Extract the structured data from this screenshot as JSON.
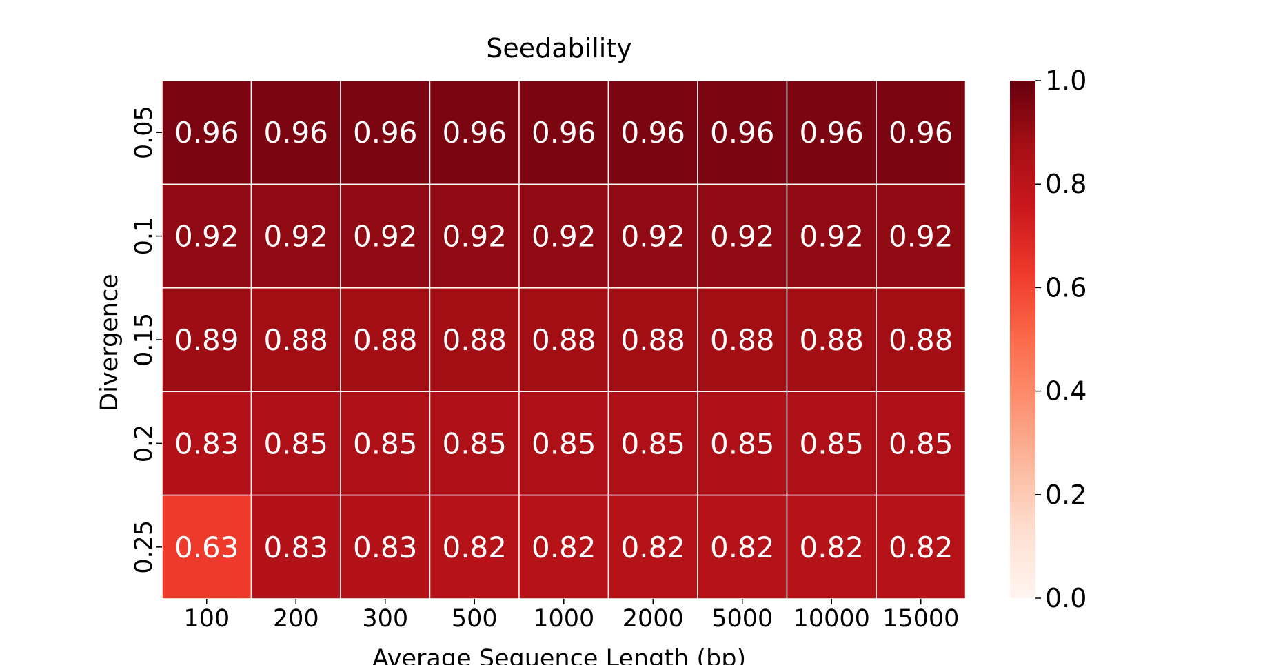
{
  "chart_data": {
    "type": "heatmap",
    "title": "Seedability",
    "xlabel": "Average Sequence Length (bp)",
    "ylabel": "Divergence",
    "x_categories": [
      "100",
      "200",
      "300",
      "500",
      "1000",
      "2000",
      "5000",
      "10000",
      "15000"
    ],
    "y_categories": [
      "0.05",
      "0.1",
      "0.15",
      "0.2",
      "0.25"
    ],
    "values": [
      [
        0.96,
        0.96,
        0.96,
        0.96,
        0.96,
        0.96,
        0.96,
        0.96,
        0.96
      ],
      [
        0.92,
        0.92,
        0.92,
        0.92,
        0.92,
        0.92,
        0.92,
        0.92,
        0.92
      ],
      [
        0.89,
        0.88,
        0.88,
        0.88,
        0.88,
        0.88,
        0.88,
        0.88,
        0.88
      ],
      [
        0.83,
        0.85,
        0.85,
        0.85,
        0.85,
        0.85,
        0.85,
        0.85,
        0.85
      ],
      [
        0.63,
        0.83,
        0.83,
        0.82,
        0.82,
        0.82,
        0.82,
        0.82,
        0.82
      ]
    ],
    "value_labels": [
      [
        "0.96",
        "0.96",
        "0.96",
        "0.96",
        "0.96",
        "0.96",
        "0.96",
        "0.96",
        "0.96"
      ],
      [
        "0.92",
        "0.92",
        "0.92",
        "0.92",
        "0.92",
        "0.92",
        "0.92",
        "0.92",
        "0.92"
      ],
      [
        "0.89",
        "0.88",
        "0.88",
        "0.88",
        "0.88",
        "0.88",
        "0.88",
        "0.88",
        "0.88"
      ],
      [
        "0.83",
        "0.85",
        "0.85",
        "0.85",
        "0.85",
        "0.85",
        "0.85",
        "0.85",
        "0.85"
      ],
      [
        "0.63",
        "0.83",
        "0.83",
        "0.82",
        "0.82",
        "0.82",
        "0.82",
        "0.82",
        "0.82"
      ]
    ],
    "colorbar": {
      "range": [
        0.0,
        1.0
      ],
      "ticks": [
        "0.0",
        "0.2",
        "0.4",
        "0.6",
        "0.8",
        "1.0"
      ],
      "colormap": "Reds",
      "colors": [
        "#fff5f0",
        "#fee0d2",
        "#fcbba1",
        "#fc9272",
        "#fb6a4a",
        "#ef3b2c",
        "#cb181d",
        "#a50f15",
        "#67000d"
      ]
    },
    "grid": false,
    "legend": "colorbar-right"
  }
}
